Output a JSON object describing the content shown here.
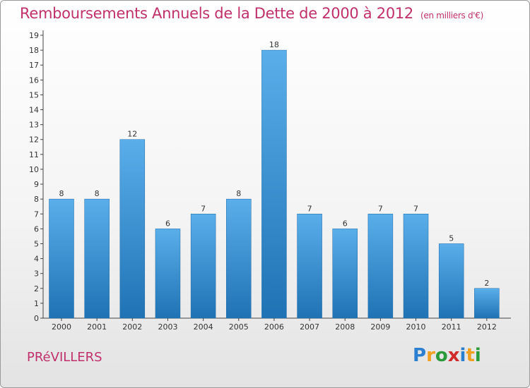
{
  "title": "Remboursements Annuels de la Dette de 2000 à 2012",
  "unit": "(en milliers d'€)",
  "commune": "PRéVILLERS",
  "logo": {
    "letters": [
      {
        "ch": "P",
        "color": "#2a7fd0"
      },
      {
        "ch": "r",
        "color": "#f0a020"
      },
      {
        "ch": "o",
        "color": "#2a9a3a"
      },
      {
        "ch": "x",
        "color": "#d02a2a"
      },
      {
        "ch": "i",
        "color": "#2a7fd0"
      },
      {
        "ch": "t",
        "color": "#f0a020"
      },
      {
        "ch": "i",
        "color": "#2a9a3a"
      }
    ]
  },
  "chart_data": {
    "type": "bar",
    "title": "Remboursements Annuels de la Dette de 2000 à 2012",
    "subtitle": "(en milliers d'€)",
    "categories": [
      "2000",
      "2001",
      "2002",
      "2003",
      "2004",
      "2005",
      "2006",
      "2007",
      "2008",
      "2009",
      "2010",
      "2011",
      "2012"
    ],
    "values": [
      8,
      8,
      12,
      6,
      7,
      8,
      18,
      7,
      6,
      7,
      7,
      5,
      2
    ],
    "ylim": [
      0,
      19
    ],
    "yticks": [
      0,
      1,
      2,
      3,
      4,
      5,
      6,
      7,
      8,
      9,
      10,
      11,
      12,
      13,
      14,
      15,
      16,
      17,
      18,
      19
    ],
    "grid": false,
    "colors": {
      "bar_top": "#5aaeea",
      "bar_bottom": "#1f73b4",
      "text": "#333333",
      "axis": "#444444"
    }
  }
}
